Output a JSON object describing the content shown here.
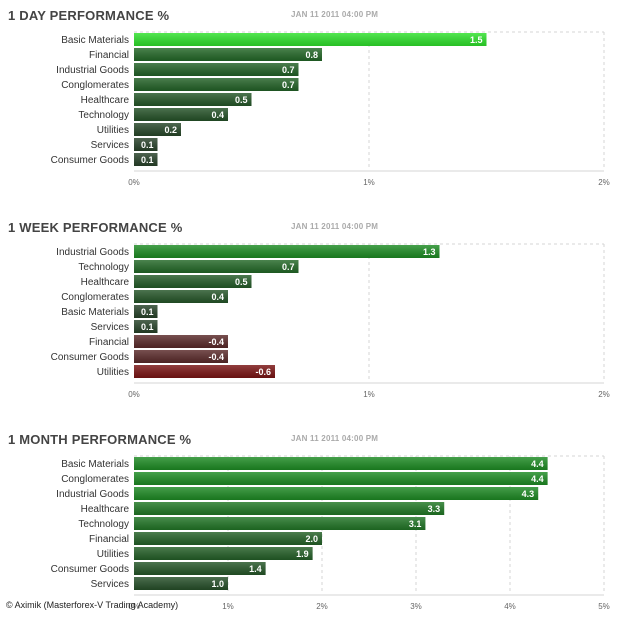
{
  "colors": {
    "positive_start": "#1e8c24",
    "positive_end": "#2a2f2b",
    "positive_max": "#2ee12b",
    "negative": "#7a1414",
    "negative_light": "#5a2a2a",
    "grid": "#d4d4d4"
  },
  "watermark": "© Aximik (Masterforex-V Trading Academy)",
  "chart_data": [
    {
      "type": "bar",
      "orientation": "horizontal",
      "title": "1 DAY PERFORMANCE %",
      "date": "JAN 11 2011 04:00 PM",
      "categories": [
        "Basic Materials",
        "Financial",
        "Industrial Goods",
        "Conglomerates",
        "Healthcare",
        "Technology",
        "Utilities",
        "Services",
        "Consumer Goods"
      ],
      "values": [
        1.5,
        0.8,
        0.7,
        0.7,
        0.5,
        0.4,
        0.2,
        0.1,
        0.1
      ],
      "value_labels": [
        "1.5",
        "0.8",
        "0.7",
        "0.7",
        "0.5",
        "0.4",
        "0.2",
        "0.1",
        "0.1"
      ],
      "xlim": [
        0,
        2
      ],
      "xticks": [
        0,
        1,
        2
      ],
      "xtick_labels": [
        "0%",
        "1%",
        "2%"
      ],
      "grid": true
    },
    {
      "type": "bar",
      "orientation": "horizontal",
      "title": "1 WEEK PERFORMANCE %",
      "date": "JAN 11 2011 04:00 PM",
      "categories": [
        "Industrial Goods",
        "Technology",
        "Healthcare",
        "Conglomerates",
        "Basic Materials",
        "Services",
        "Financial",
        "Consumer Goods",
        "Utilities"
      ],
      "values": [
        1.3,
        0.7,
        0.5,
        0.4,
        0.1,
        0.1,
        -0.4,
        -0.4,
        -0.6
      ],
      "value_labels": [
        "1.3",
        "0.7",
        "0.5",
        "0.4",
        "0.1",
        "0.1",
        "-0.4",
        "-0.4",
        "-0.6"
      ],
      "xlim": [
        0,
        2
      ],
      "xticks": [
        0,
        1,
        2
      ],
      "xtick_labels": [
        "0%",
        "1%",
        "2%"
      ],
      "grid": true
    },
    {
      "type": "bar",
      "orientation": "horizontal",
      "title": "1 MONTH PERFORMANCE %",
      "date": "JAN 11 2011 04:00 PM",
      "categories": [
        "Basic Materials",
        "Conglomerates",
        "Industrial Goods",
        "Healthcare",
        "Technology",
        "Financial",
        "Utilities",
        "Consumer Goods",
        "Services"
      ],
      "values": [
        4.4,
        4.4,
        4.3,
        3.3,
        3.1,
        2.0,
        1.9,
        1.4,
        1.0
      ],
      "value_labels": [
        "4.4",
        "4.4",
        "4.3",
        "3.3",
        "3.1",
        "2.0",
        "1.9",
        "1.4",
        "1.0"
      ],
      "xlim": [
        0,
        5
      ],
      "xticks": [
        0,
        1,
        2,
        3,
        4,
        5
      ],
      "xtick_labels": [
        "0%",
        "1%",
        "2%",
        "3%",
        "4%",
        "5%"
      ],
      "grid": true
    }
  ]
}
